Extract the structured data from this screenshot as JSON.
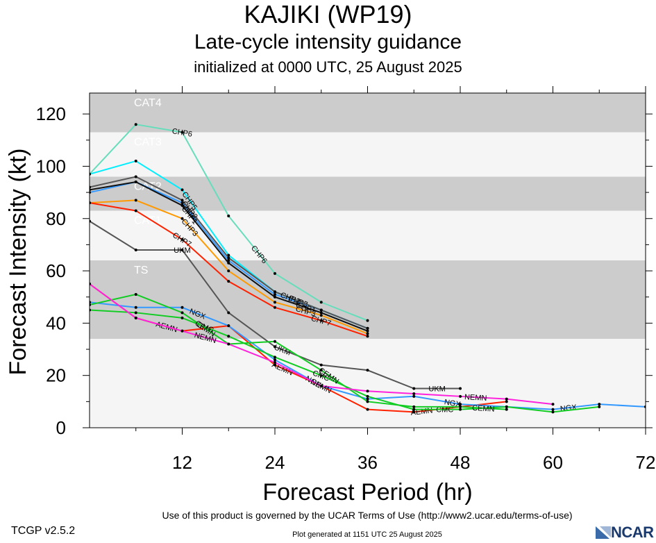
{
  "header": {
    "title": "KAJIKI (WP19)",
    "subtitle": "Late-cycle intensity guidance",
    "init": "initialized at 0000 UTC, 25 August 2025"
  },
  "footer": {
    "version": "TCGP v2.5.2",
    "terms": "Use of this product is governed by the UCAR Terms of Use (http://www2.ucar.edu/terms-of-use)",
    "generated": "Plot generated at 1151 UTC   25 August 2025",
    "logo": "NCAR"
  },
  "chart_data": {
    "type": "line",
    "xlabel": "Forecast Period (hr)",
    "ylabel": "Forecast Intensity (kt)",
    "xlim": [
      0,
      72
    ],
    "ylim": [
      0,
      128
    ],
    "xticks": [
      12,
      24,
      36,
      48,
      60,
      72
    ],
    "yticks": [
      0,
      20,
      40,
      60,
      80,
      100,
      120
    ],
    "grid": false,
    "bands": [
      {
        "label": "TS",
        "from": 34,
        "to": 64,
        "color": "#cccccc"
      },
      {
        "label": "CAT1",
        "from": 64,
        "to": 83,
        "color": "#f5f5f5"
      },
      {
        "label": "CAT2",
        "from": 83,
        "to": 96,
        "color": "#cccccc"
      },
      {
        "label": "CAT3",
        "from": 96,
        "to": 113,
        "color": "#f5f5f5"
      },
      {
        "label": "CAT4",
        "from": 113,
        "to": 128,
        "color": "#cccccc"
      }
    ],
    "below_band_color": "#f5f5f5",
    "series": [
      {
        "name": "CHP6",
        "color": "#66ddbb",
        "x": [
          0,
          6,
          12,
          18,
          24,
          30,
          36
        ],
        "y": [
          97,
          116,
          113,
          81,
          59,
          48,
          41
        ],
        "labels": [
          [
            12,
            "CHP6"
          ],
          [
            22,
            "CHP6"
          ]
        ]
      },
      {
        "name": "CHP5",
        "color": "#00eeff",
        "x": [
          0,
          6,
          12,
          18,
          24,
          30,
          36
        ],
        "y": [
          97,
          102,
          91,
          66,
          52,
          45,
          38
        ],
        "labels": [
          [
            13,
            "CHP5"
          ],
          [
            27,
            "CHP5"
          ]
        ]
      },
      {
        "name": "CHP4",
        "color": "#3399ff",
        "x": [
          0,
          6,
          12,
          18,
          24,
          30,
          36
        ],
        "y": [
          90,
          94,
          86,
          64,
          51,
          45,
          38
        ],
        "labels": [
          [
            13,
            "CHP4"
          ],
          [
            27,
            "CHP4"
          ]
        ]
      },
      {
        "name": "CHP2",
        "color": "#555555",
        "x": [
          0,
          6,
          12,
          18,
          24,
          30,
          36
        ],
        "y": [
          92,
          96,
          87,
          65,
          52,
          45,
          38
        ],
        "labels": [
          [
            13,
            "CHP2"
          ],
          [
            26,
            "CHP2"
          ]
        ]
      },
      {
        "name": "CHP1",
        "color": "#111111",
        "x": [
          0,
          6,
          12,
          18,
          24,
          30,
          36
        ],
        "y": [
          91,
          94,
          85,
          63,
          50,
          44,
          37
        ],
        "labels": [
          [
            13,
            "CHP1"
          ],
          [
            28,
            "CHP1"
          ]
        ]
      },
      {
        "name": "CHP3",
        "color": "#ff9900",
        "x": [
          0,
          6,
          12,
          18,
          24,
          30,
          36
        ],
        "y": [
          86,
          87,
          80,
          60,
          48,
          43,
          36
        ],
        "labels": [
          [
            13,
            "CHP3"
          ],
          [
            28,
            "CHP3"
          ]
        ]
      },
      {
        "name": "CHP7",
        "color": "#ff2200",
        "x": [
          0,
          6,
          12,
          18,
          24,
          30,
          36
        ],
        "y": [
          86,
          83,
          72,
          56,
          46,
          41,
          35
        ],
        "labels": [
          [
            12,
            "CHP7"
          ],
          [
            30,
            "CHP7"
          ]
        ]
      },
      {
        "name": "UKM",
        "color": "#555555",
        "x": [
          0,
          6,
          12,
          18,
          24,
          30,
          36,
          42,
          48
        ],
        "y": [
          79,
          68,
          68,
          44,
          31,
          24,
          22,
          15,
          15
        ],
        "labels": [
          [
            12,
            "UKM"
          ],
          [
            25,
            "UKM"
          ],
          [
            45,
            "UKM"
          ]
        ]
      },
      {
        "name": "AEMN",
        "color": "#ff2200",
        "x": [
          0,
          6,
          12,
          18,
          24,
          30,
          36,
          42,
          48,
          54
        ],
        "y": [
          55,
          42,
          37,
          39,
          24,
          16,
          7,
          6,
          8,
          10
        ],
        "labels": [
          [
            10,
            "AEMN"
          ],
          [
            25,
            "AEMN"
          ],
          [
            43,
            "AEMN"
          ]
        ]
      },
      {
        "name": "NGX",
        "color": "#3399ff",
        "x": [
          0,
          6,
          12,
          18,
          24,
          30,
          36,
          42,
          48,
          54,
          60,
          66,
          72
        ],
        "y": [
          48,
          46,
          46,
          39,
          26,
          16,
          11,
          12,
          9,
          8,
          7,
          9,
          8
        ],
        "labels": [
          [
            14,
            "NGX"
          ],
          [
            29,
            "NGX"
          ],
          [
            47,
            "NGX"
          ],
          [
            62,
            "NGX"
          ]
        ]
      },
      {
        "name": "CMC",
        "color": "#11cc22",
        "x": [
          0,
          6,
          12,
          18,
          24,
          30,
          36,
          42,
          48,
          54,
          60,
          66
        ],
        "y": [
          45,
          44,
          42,
          35,
          27,
          20,
          12,
          7,
          7,
          8,
          6,
          8
        ],
        "labels": [
          [
            15,
            "CMC"
          ],
          [
            30,
            "CMC"
          ],
          [
            46,
            "CMC"
          ]
        ]
      },
      {
        "name": "CEMN",
        "color": "#11cc22",
        "x": [
          0,
          6,
          12,
          18,
          24,
          30,
          36,
          42,
          48,
          54
        ],
        "y": [
          47,
          51,
          44,
          32,
          33,
          22,
          10,
          8,
          8,
          7
        ],
        "labels": [
          [
            15,
            "CEMN"
          ],
          [
            31,
            "CEMN"
          ],
          [
            51,
            "CEMN"
          ]
        ]
      },
      {
        "name": "NEMN",
        "color": "#ff22dd",
        "x": [
          0,
          6,
          12,
          18,
          24,
          30,
          36,
          42,
          48,
          54,
          60
        ],
        "y": [
          55,
          42,
          37,
          32,
          25,
          16,
          14,
          13,
          12,
          11,
          9
        ],
        "labels": [
          [
            15,
            "NEMN"
          ],
          [
            30,
            "NEMN"
          ],
          [
            50,
            "NEMN"
          ]
        ]
      }
    ]
  }
}
